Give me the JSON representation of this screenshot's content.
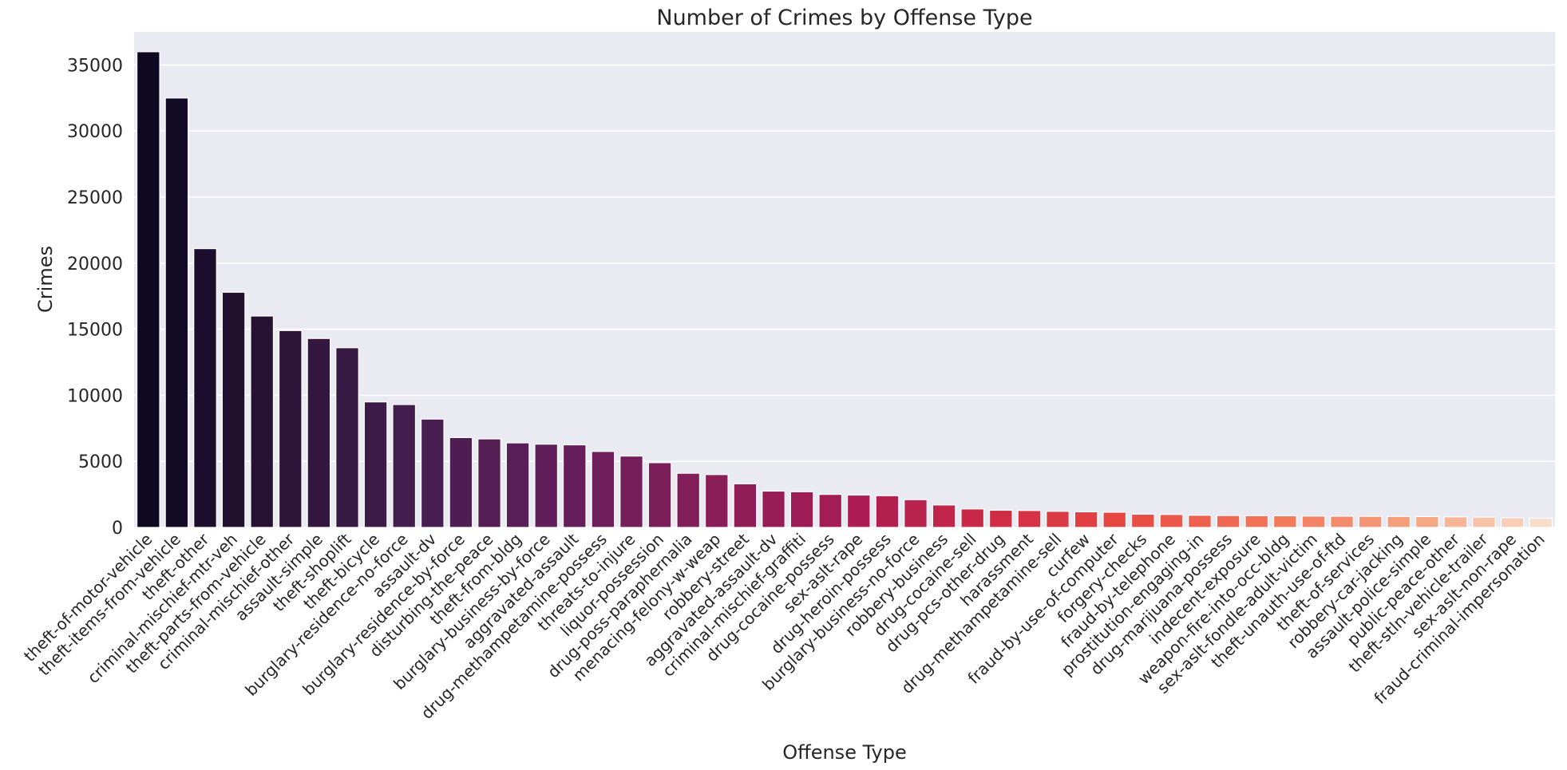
{
  "chart_data": {
    "type": "bar",
    "title": "Number of Crimes by Offense Type",
    "xlabel": "Offense Type",
    "ylabel": "Crimes",
    "ylim": [
      0,
      37500
    ],
    "yticks": [
      0,
      5000,
      10000,
      15000,
      20000,
      25000,
      30000,
      35000
    ],
    "grid": true,
    "palette": "rocket",
    "background_color": "#eaeaf2",
    "categories": [
      "theft-of-motor-vehicle",
      "theft-items-from-vehicle",
      "theft-other",
      "criminal-mischief-mtr-veh",
      "theft-parts-from-vehicle",
      "criminal-mischief-other",
      "assault-simple",
      "theft-shoplift",
      "theft-bicycle",
      "burglary-residence-no-force",
      "assault-dv",
      "burglary-residence-by-force",
      "disturbing-the-peace",
      "theft-from-bldg",
      "burglary-business-by-force",
      "aggravated-assault",
      "drug-methampetamine-possess",
      "threats-to-injure",
      "liquor-possession",
      "drug-poss-paraphernalia",
      "menacing-felony-w-weap",
      "robbery-street",
      "aggravated-assault-dv",
      "criminal-mischief-graffiti",
      "drug-cocaine-possess",
      "sex-aslt-rape",
      "drug-heroin-possess",
      "burglary-business-no-force",
      "robbery-business",
      "drug-cocaine-sell",
      "drug-pcs-other-drug",
      "harassment",
      "drug-methampetamine-sell",
      "curfew",
      "fraud-by-use-of-computer",
      "forgery-checks",
      "fraud-by-telephone",
      "prostitution-engaging-in",
      "drug-marijuana-possess",
      "indecent-exposure",
      "weapon-fire-into-occ-bldg",
      "sex-aslt-fondle-adult-victim",
      "theft-unauth-use-of-ftd",
      "theft-of-services",
      "robbery-car-jacking",
      "assault-police-simple",
      "public-peace-other",
      "theft-stln-vehicle-trailer",
      "sex-aslt-non-rape",
      "fraud-criminal-impersonation"
    ],
    "values": [
      36000,
      32500,
      21100,
      17800,
      16000,
      14900,
      14300,
      13600,
      9500,
      9300,
      8200,
      6800,
      6700,
      6400,
      6300,
      6250,
      5750,
      5400,
      4900,
      4100,
      4000,
      3300,
      2750,
      2700,
      2500,
      2450,
      2400,
      2100,
      1700,
      1400,
      1300,
      1280,
      1220,
      1180,
      1150,
      1000,
      980,
      920,
      900,
      890,
      880,
      860,
      850,
      840,
      830,
      820,
      800,
      780,
      740,
      700
    ]
  }
}
